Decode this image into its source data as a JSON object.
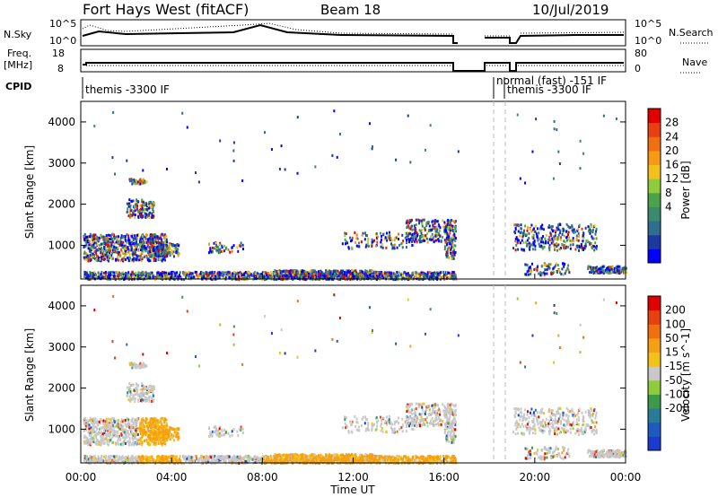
{
  "header": {
    "title": "Fort Hays West (fitACF)",
    "beam": "Beam 18",
    "date": "10/Jul/2019"
  },
  "top_panels": {
    "nsky_label": "N.Sky",
    "nsky_top": "10^5",
    "nsky_bottom": "10^0",
    "nsearch_label": "N.Search",
    "nsearch_top": "10^5",
    "nsearch_bottom": "10^0",
    "freq_label": "Freq.",
    "freq_unit": "[MHz]",
    "freq_top": "18",
    "freq_bottom": "8",
    "nave_label": "Nave",
    "nave_top": "80",
    "nave_bottom": "0",
    "cpid_label": "CPID",
    "cpid_entries": [
      "themis -3300 IF",
      "normal (fast) -151 IF",
      "themis -3300 IF"
    ]
  },
  "x_axis": {
    "label": "Time UT",
    "ticks": [
      "00:00",
      "04:00",
      "08:00",
      "12:00",
      "16:00",
      "20:00",
      "00:00"
    ]
  },
  "colors": {
    "power": [
      "#0000ff",
      "#1a3aa0",
      "#2f6e8e",
      "#3c8a6e",
      "#4ca14c",
      "#8fcc3c",
      "#f2c21a",
      "#f59a12",
      "#f07010",
      "#e84010",
      "#e00000"
    ],
    "velocity": [
      "#1a3ad0",
      "#1e5ac0",
      "#2a7a9a",
      "#3c9a4a",
      "#8fcc3c",
      "#c8c8c8",
      "#f2c21a",
      "#f5a012",
      "#f07010",
      "#e84010",
      "#e00000"
    ]
  },
  "chart_data": [
    {
      "type": "line",
      "title": "N.Sky / N.Search",
      "x": [
        "00:00",
        "04:00",
        "08:00",
        "12:00",
        "16:00",
        "20:00",
        "00:00"
      ],
      "ylim": [
        "10^0",
        "10^5"
      ]
    },
    {
      "type": "line",
      "title": "Freq. [MHz] / Nave",
      "ylim": [
        8,
        18
      ],
      "ylim_right": [
        0,
        80
      ]
    },
    {
      "type": "heatmap",
      "title": "Power [dB]",
      "xlabel": "Time UT",
      "ylabel": "Slant Range [km]",
      "xlim": [
        0,
        24
      ],
      "ylim": [
        180,
        4500
      ],
      "yticks": [
        "1000",
        "2000",
        "3000",
        "4000"
      ],
      "colorbar_label": "Power [dB]",
      "colorbar_ticks": [
        "4",
        "8",
        "12",
        "16",
        "20",
        "24",
        "28"
      ],
      "gap_hours": [
        18.2,
        18.8
      ]
    },
    {
      "type": "heatmap",
      "title": "Velocity [m s^-1]",
      "xlabel": "Time UT",
      "ylabel": "Slant Range [km]",
      "xlim": [
        0,
        24
      ],
      "ylim": [
        180,
        4500
      ],
      "yticks": [
        "1000",
        "2000",
        "3000",
        "4000"
      ],
      "colorbar_label": "Velocity [m s^-1]",
      "colorbar_ticks": [
        "200",
        "100",
        "50",
        "15",
        "-15",
        "-50",
        "-100",
        "-200"
      ]
    }
  ]
}
